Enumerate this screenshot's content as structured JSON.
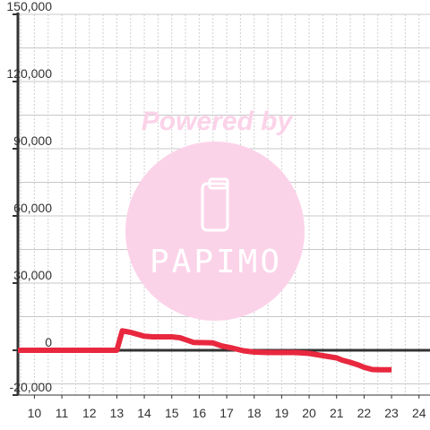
{
  "colors": {
    "series": "#e8283f",
    "axis": "#333333",
    "grid_major": "#c8c8c8",
    "grid_minor": "#cfcfcf",
    "watermark": "#fbd3e9",
    "watermark_text": "#ffffff"
  },
  "watermark": {
    "caption": "Powered by",
    "logo_text": "PAPIMO",
    "logo_icon": "phone-icon"
  },
  "chart_data": {
    "type": "line",
    "title": "",
    "xlabel": "",
    "ylabel": "",
    "xlim": [
      9.4,
      24.4
    ],
    "ylim": [
      -20000,
      150000
    ],
    "x_ticks": [
      10,
      11,
      12,
      13,
      14,
      15,
      16,
      17,
      18,
      19,
      20,
      21,
      22,
      23,
      24
    ],
    "x_tick_labels": [
      "10",
      "11",
      "12",
      "13",
      "14",
      "15",
      "16",
      "17",
      "18",
      "19",
      "20",
      "21",
      "22",
      "23",
      "24"
    ],
    "y_ticks": [
      -20000,
      0,
      30000,
      60000,
      90000,
      120000,
      150000
    ],
    "y_tick_labels": [
      "-20,000",
      "0",
      "30,000",
      "60,000",
      "90,000",
      "120,000",
      "150,000"
    ],
    "grid": true,
    "legend": "none",
    "series": [
      {
        "x": [
          9.4,
          13.0,
          13.2,
          13.5,
          14.0,
          14.3,
          15.0,
          15.3,
          15.8,
          16.5,
          16.8,
          17.2,
          17.6,
          18.0,
          18.5,
          19.0,
          19.5,
          20.0,
          20.5,
          21.0,
          21.2,
          21.5,
          21.8,
          22.0,
          22.3,
          22.6,
          23.0
        ],
        "y": [
          0,
          0,
          8700,
          8000,
          6300,
          6000,
          6000,
          5600,
          3500,
          3300,
          2000,
          1000,
          -200,
          -800,
          -1000,
          -1000,
          -1000,
          -1400,
          -2400,
          -3400,
          -4400,
          -5400,
          -6600,
          -7600,
          -8600,
          -8700,
          -8700
        ]
      }
    ]
  }
}
